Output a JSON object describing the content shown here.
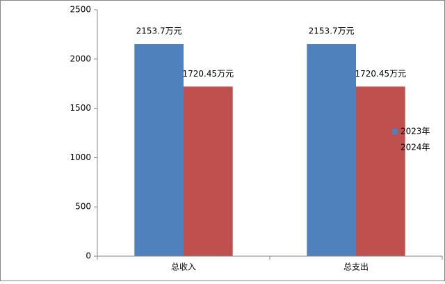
{
  "chart_data": {
    "type": "bar",
    "categories": [
      "总收入",
      "总支出"
    ],
    "series": [
      {
        "name": "2023年",
        "color": "#4f81bd",
        "values": [
          2153.7,
          2153.7
        ],
        "value_labels": [
          "2153.7万元",
          "2153.7万元"
        ]
      },
      {
        "name": "2024年",
        "color": "#c0504d",
        "values": [
          1720.45,
          1720.45
        ],
        "value_labels": [
          "1720.45万元",
          "1720.45万元"
        ]
      }
    ],
    "ylim": [
      0,
      2500
    ],
    "yticks": [
      0,
      500,
      1000,
      1500,
      2000,
      2500
    ],
    "grid": false,
    "legend": "right"
  }
}
